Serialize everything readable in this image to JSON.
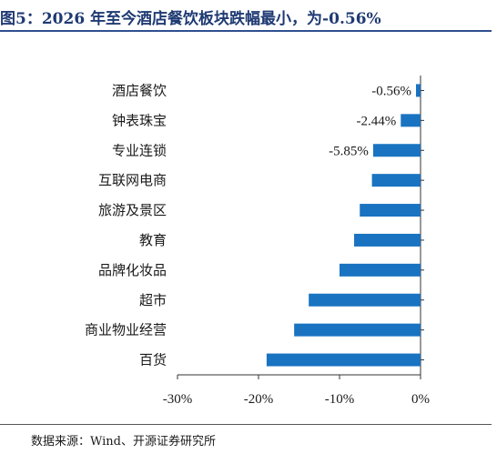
{
  "figure": {
    "title": "图5：2026 年至今酒店餐饮板块跌幅最小，为-0.56%",
    "source": "数据来源：Wind、开源证券研究所"
  },
  "colors": {
    "bar": "#1a73c1",
    "axis": "#333333",
    "title": "#1f3a73"
  },
  "chart_data": {
    "type": "bar",
    "orientation": "horizontal",
    "title": "",
    "xlabel": "",
    "ylabel": "",
    "categories": [
      "酒店餐饮",
      "钟表珠宝",
      "专业连锁",
      "互联网电商",
      "旅游及景区",
      "教育",
      "品牌化妆品",
      "超市",
      "商业物业经营",
      "百货"
    ],
    "values": [
      -0.56,
      -2.44,
      -5.85,
      -6.0,
      -7.5,
      -8.2,
      -10.0,
      -13.8,
      -15.6,
      -19.0
    ],
    "data_labels": [
      "-0.56%",
      "-2.44%",
      "-5.85%",
      null,
      null,
      null,
      null,
      null,
      null,
      null
    ],
    "xlim": [
      -30,
      0
    ],
    "xticks": [
      -30,
      -20,
      -10,
      0
    ],
    "xtick_labels": [
      "-30%",
      "-20%",
      "-10%",
      "0%"
    ],
    "grid": false,
    "legend": "none"
  }
}
